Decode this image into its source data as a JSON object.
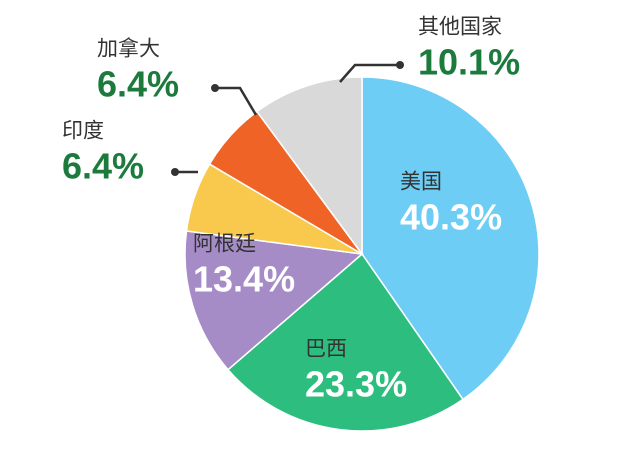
{
  "chart_data": {
    "type": "pie",
    "categories": [
      "美国",
      "巴西",
      "阿根廷",
      "印度",
      "加拿大",
      "其他国家"
    ],
    "values": [
      40.3,
      23.3,
      13.4,
      6.4,
      6.4,
      10.1
    ],
    "value_labels": [
      "40.3%",
      "23.3%",
      "13.4%",
      "6.4%",
      "6.4%",
      "10.1%"
    ],
    "colors": [
      "#6ecdf5",
      "#2dbd7f",
      "#a58cc7",
      "#f8c94d",
      "#ef6426",
      "#d9d9d9"
    ]
  }
}
